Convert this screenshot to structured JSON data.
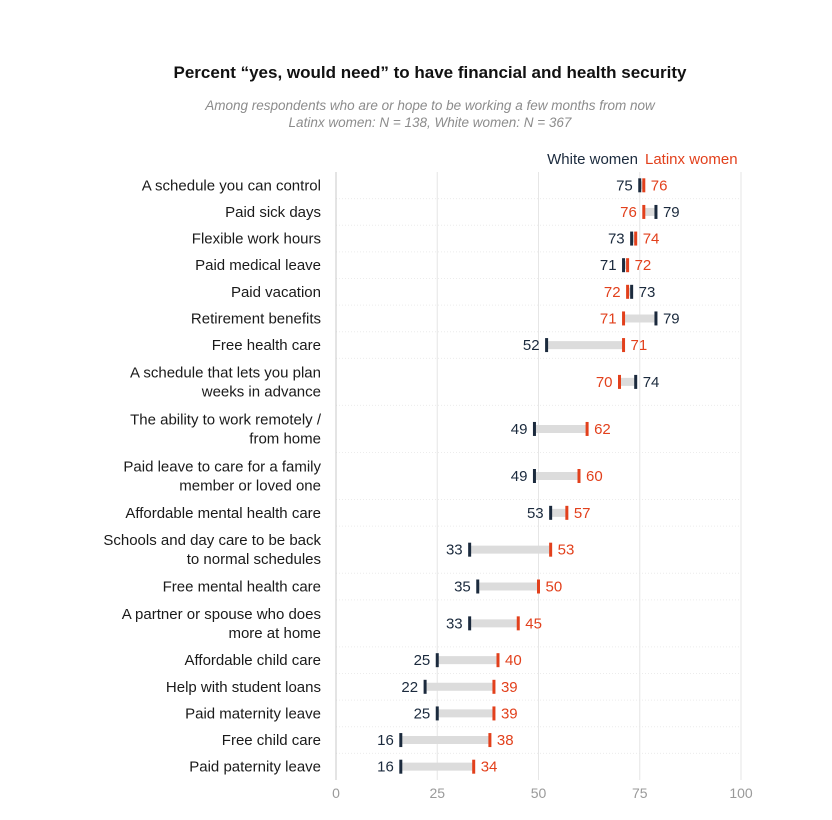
{
  "colors": {
    "white_women": "#1b2a3d",
    "latinx_women": "#e2401c",
    "range": "#dcdcdc",
    "grid": "#e6e6e6",
    "row_line": "#ececec"
  },
  "chart_data": {
    "type": "dumbbell",
    "title": "Percent “yes, would need” to have financial and health security",
    "subtitle": [
      "Among respondents who are or hope to be working a few months from now",
      "Latinx women: N = 138, White women: N = 367"
    ],
    "xlim": [
      0,
      100
    ],
    "xticks": [
      0,
      25,
      50,
      75,
      100
    ],
    "legend_position": "top-right",
    "series": [
      {
        "key": "white",
        "name": "White women"
      },
      {
        "key": "latinx",
        "name": "Latinx women"
      }
    ],
    "rows": [
      {
        "label": [
          "A schedule you can control"
        ],
        "white": 75,
        "latinx": 76
      },
      {
        "label": [
          "Paid sick days"
        ],
        "white": 79,
        "latinx": 76
      },
      {
        "label": [
          "Flexible work hours"
        ],
        "white": 73,
        "latinx": 74
      },
      {
        "label": [
          "Paid medical leave"
        ],
        "white": 71,
        "latinx": 72
      },
      {
        "label": [
          "Paid vacation"
        ],
        "white": 73,
        "latinx": 72
      },
      {
        "label": [
          "Retirement benefits"
        ],
        "white": 79,
        "latinx": 71
      },
      {
        "label": [
          "Free health care"
        ],
        "white": 52,
        "latinx": 71
      },
      {
        "label": [
          "A schedule that lets you plan",
          "weeks in advance"
        ],
        "white": 74,
        "latinx": 70
      },
      {
        "label": [
          "The ability to work remotely /",
          "from home"
        ],
        "white": 49,
        "latinx": 62
      },
      {
        "label": [
          "Paid leave to care for a family",
          "member or loved one"
        ],
        "white": 49,
        "latinx": 60
      },
      {
        "label": [
          "Affordable mental health care"
        ],
        "white": 53,
        "latinx": 57
      },
      {
        "label": [
          "Schools and day care to be back",
          "to normal schedules"
        ],
        "white": 33,
        "latinx": 53
      },
      {
        "label": [
          "Free mental health care"
        ],
        "white": 35,
        "latinx": 50
      },
      {
        "label": [
          "A partner or spouse who does",
          "more at home"
        ],
        "white": 33,
        "latinx": 45
      },
      {
        "label": [
          "Affordable child care"
        ],
        "white": 25,
        "latinx": 40
      },
      {
        "label": [
          "Help with student loans"
        ],
        "white": 22,
        "latinx": 39
      },
      {
        "label": [
          "Paid maternity leave"
        ],
        "white": 25,
        "latinx": 39
      },
      {
        "label": [
          "Free child care"
        ],
        "white": 16,
        "latinx": 38
      },
      {
        "label": [
          "Paid paternity leave"
        ],
        "white": 16,
        "latinx": 34
      }
    ]
  }
}
